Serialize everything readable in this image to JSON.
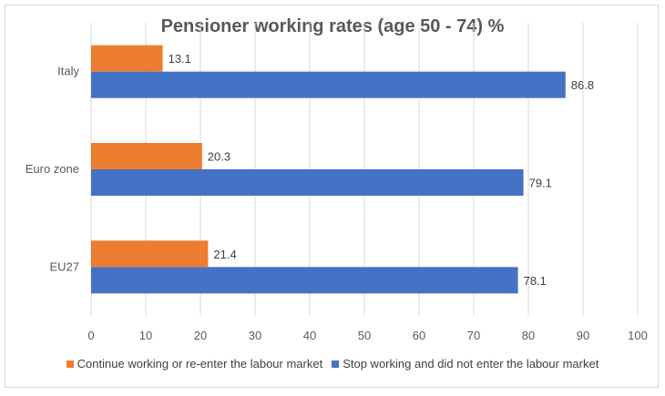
{
  "chart_data": {
    "type": "bar",
    "orientation": "horizontal",
    "title": "Pensioner working rates (age 50 - 74) %",
    "categories": [
      "Italy",
      "Euro zone",
      "EU27"
    ],
    "series": [
      {
        "name": "Continue working or re-enter the labour market",
        "color": "#ED7D31",
        "values": [
          13.1,
          20.3,
          21.4
        ]
      },
      {
        "name": "Stop working and did not enter the labour market",
        "color": "#4472C4",
        "values": [
          86.8,
          79.1,
          78.1
        ]
      }
    ],
    "xlim": [
      0,
      100
    ],
    "xticks": [
      0,
      10,
      20,
      30,
      40,
      50,
      60,
      70,
      80,
      90,
      100
    ],
    "grid": "vertical",
    "legend": "bottom"
  }
}
